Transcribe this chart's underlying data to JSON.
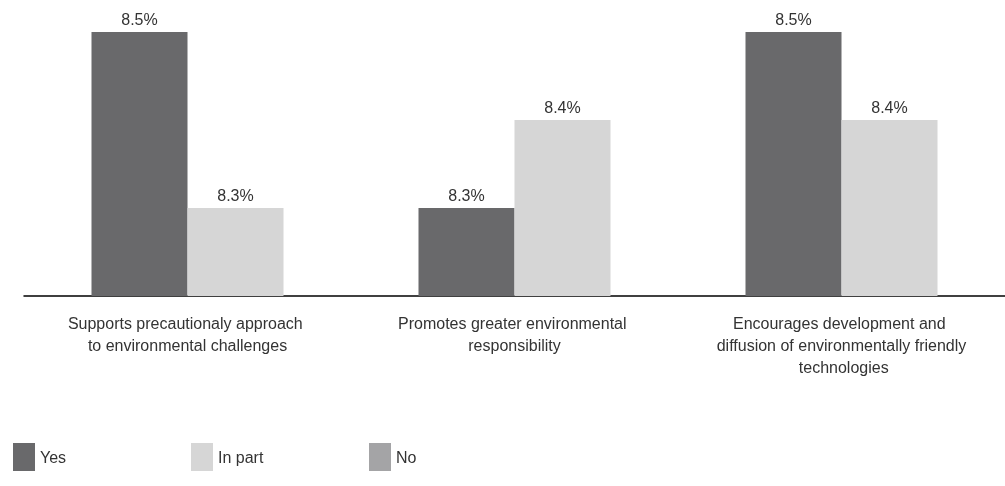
{
  "chart_data": {
    "type": "bar",
    "categories": [
      "Supports precautionaly approach to environmental challenges",
      "Promotes greater environmental responsibility",
      "Encourages development and diffusion of environmentally friendly technologies"
    ],
    "series": [
      {
        "name": "Yes",
        "color": "#69696b",
        "values": [
          8.5,
          8.3,
          8.5
        ],
        "value_labels": [
          "8.5%",
          "8.3%",
          "8.5%"
        ]
      },
      {
        "name": "In part",
        "color": "#d6d6d6",
        "values": [
          8.3,
          8.4,
          8.4
        ],
        "value_labels": [
          "8.3%",
          "8.4%",
          "8.4%"
        ]
      },
      {
        "name": "No",
        "color": "#a4a4a6",
        "values": [
          null,
          null,
          null
        ]
      }
    ],
    "ylim": [
      8.2,
      8.5
    ],
    "tick_labels": "x",
    "legend": "bottom left",
    "grid": false
  }
}
